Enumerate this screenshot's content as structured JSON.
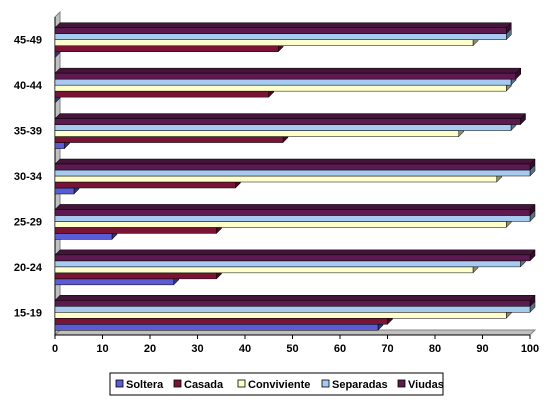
{
  "chart_data": {
    "type": "bar",
    "orientation": "horizontal",
    "style": "3d",
    "categories": [
      "15-19",
      "20-24",
      "25-29",
      "30-34",
      "35-39",
      "40-44",
      "45-49"
    ],
    "series": [
      {
        "name": "Soltera",
        "color": "#5b5bd6",
        "values": [
          68,
          25,
          12,
          4,
          2,
          0,
          0
        ]
      },
      {
        "name": "Casada",
        "color": "#7a1437",
        "values": [
          70,
          34,
          34,
          38,
          48,
          45,
          47
        ]
      },
      {
        "name": "Conviviente",
        "color": "#ffffcc",
        "values": [
          95,
          88,
          95,
          93,
          85,
          95,
          88
        ]
      },
      {
        "name": "Separadas",
        "color": "#a6caf0",
        "values": [
          100,
          98,
          100,
          100,
          96,
          96,
          95
        ]
      },
      {
        "name": "Viudas",
        "color": "#5c1a4e",
        "values": [
          100,
          100,
          100,
          100,
          98,
          97,
          95
        ]
      }
    ],
    "xlim": [
      0,
      100
    ],
    "xticks": [
      "0",
      "10",
      "20",
      "30",
      "40",
      "50",
      "60",
      "70",
      "80",
      "90",
      "100"
    ],
    "title": "",
    "xlabel": "",
    "ylabel": "",
    "grid": false,
    "legend_position": "bottom"
  }
}
